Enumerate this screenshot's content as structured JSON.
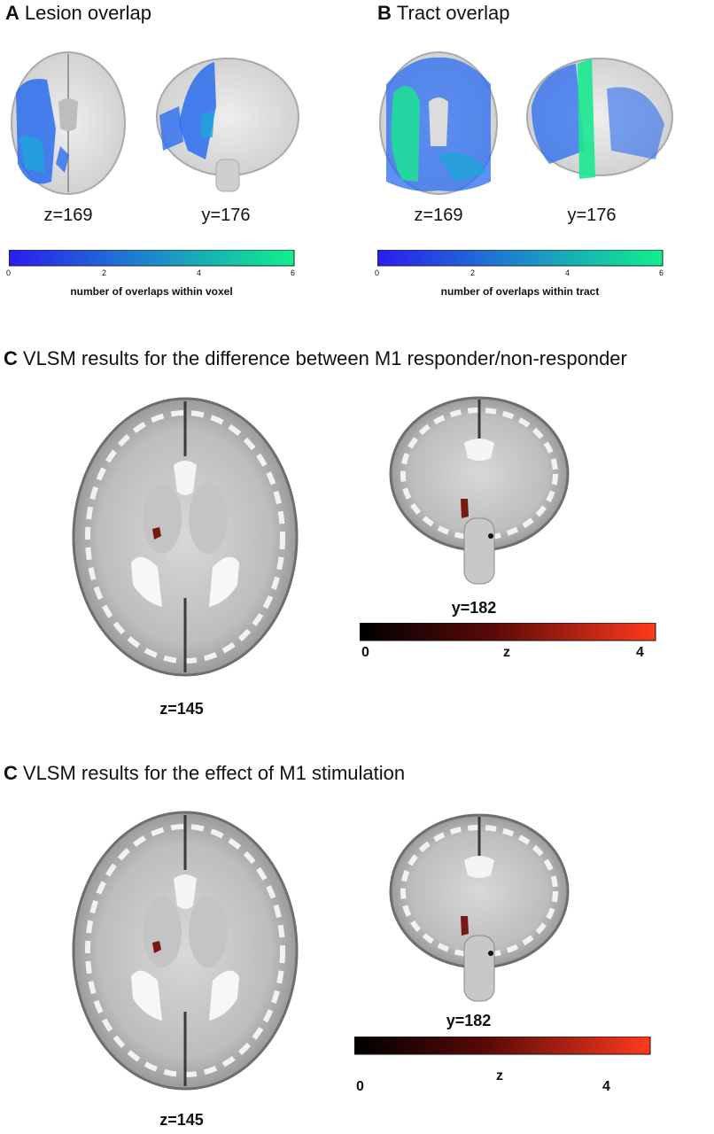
{
  "panel_a": {
    "letter": "A",
    "title": "Lesion overlap",
    "axial_label": "z=169",
    "coronal_label": "y=176",
    "colorbar": {
      "ticks": [
        "0",
        "2",
        "4",
        "6"
      ],
      "caption": "number of overlaps within voxel",
      "colors": [
        "#2a1cf0",
        "#1e7fd0",
        "#10f08c"
      ]
    }
  },
  "panel_b": {
    "letter": "B",
    "title": "Tract overlap",
    "axial_label": "z=169",
    "coronal_label": "y=176",
    "colorbar": {
      "ticks": [
        "0",
        "2",
        "4",
        "6"
      ],
      "caption": "number of overlaps within tract",
      "colors": [
        "#2a1cf0",
        "#1e7fd0",
        "#10f08c"
      ]
    }
  },
  "panel_c1": {
    "letter": "C",
    "title": "VLSM results for the difference between M1 responder/non-responder",
    "axial_label": "z=145",
    "coronal_label": "y=182",
    "colorbar": {
      "ticks": [
        "0",
        "z",
        "4"
      ],
      "colors": [
        "#000000",
        "#5a0a08",
        "#ff3a1c"
      ]
    }
  },
  "panel_c2": {
    "letter": "C",
    "title": "VLSM results for the effect of M1 stimulation",
    "axial_label": "z=145",
    "coronal_label": "y=182",
    "colorbar": {
      "ticks": [
        "0",
        "z",
        "4"
      ],
      "colors": [
        "#000000",
        "#5a0a08",
        "#ff3a1c"
      ]
    }
  },
  "colors": {
    "highlight": "#7a1812",
    "lesion": "#2a6cf0",
    "tract": "#18e890"
  }
}
